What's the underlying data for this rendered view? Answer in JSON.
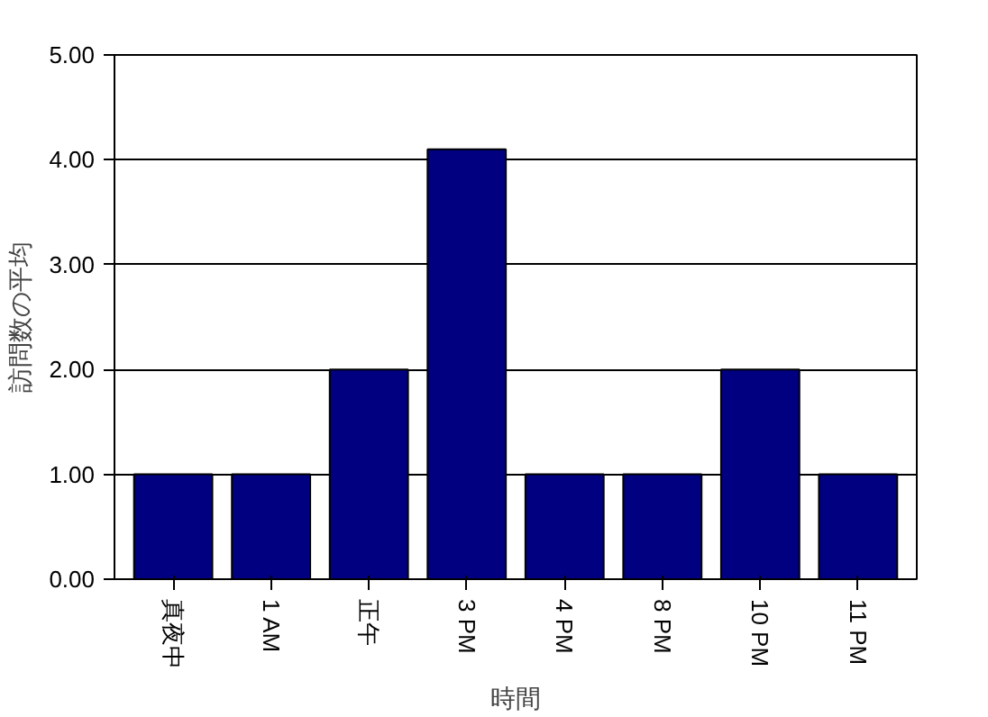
{
  "chart_data": {
    "type": "bar",
    "xlabel": "時間",
    "ylabel": "訪問数の平均",
    "categories": [
      "真夜中",
      "1 AM",
      "正午",
      "3 PM",
      "4 PM",
      "8 PM",
      "10 PM",
      "11 PM"
    ],
    "values": [
      1,
      1,
      2,
      4.1,
      1,
      1,
      2,
      1
    ],
    "color": "#000080",
    "ylim": [
      0,
      5
    ],
    "yticks": [
      {
        "value": 0,
        "label": "0.00"
      },
      {
        "value": 1,
        "label": "1.00"
      },
      {
        "value": 2,
        "label": "2.00"
      },
      {
        "value": 3,
        "label": "3.00"
      },
      {
        "value": 4,
        "label": "4.00"
      },
      {
        "value": 5,
        "label": "5.00"
      }
    ],
    "grid": "y"
  }
}
